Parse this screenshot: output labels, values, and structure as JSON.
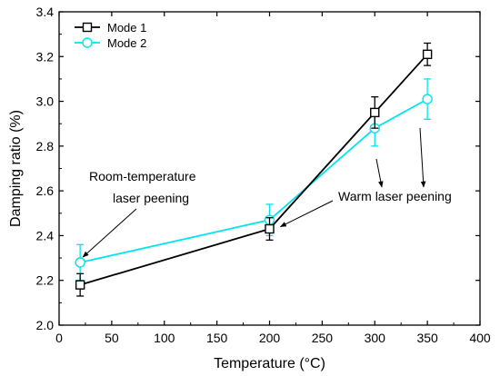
{
  "chart_data": {
    "type": "line",
    "title": "",
    "xlabel": "Temperature (°C)",
    "ylabel": "Damping ratio (%)",
    "xlim": [
      0,
      400
    ],
    "ylim": [
      2.0,
      3.4
    ],
    "xticks": [
      0,
      50,
      100,
      150,
      200,
      250,
      300,
      350,
      400
    ],
    "yticks": [
      2.0,
      2.2,
      2.4,
      2.6,
      2.8,
      3.0,
      3.2,
      3.4
    ],
    "x": [
      20,
      200,
      300,
      350
    ],
    "series": [
      {
        "name": "Mode 1",
        "color": "#000000",
        "marker": "square",
        "values": [
          2.18,
          2.43,
          2.95,
          3.21
        ],
        "errors": [
          0.05,
          0.05,
          0.07,
          0.05
        ]
      },
      {
        "name": "Mode 2",
        "color": "#00e5ee",
        "marker": "circle",
        "values": [
          2.28,
          2.47,
          2.88,
          3.01
        ],
        "errors": [
          0.08,
          0.07,
          0.08,
          0.09
        ]
      }
    ],
    "legend_position": "top-left",
    "grid": false,
    "annotations": [
      {
        "lines": [
          "Room-temperature",
          "laser peening"
        ],
        "points_to": [
          [
            20,
            2.28
          ]
        ]
      },
      {
        "lines": [
          "Warm laser peening"
        ],
        "points_to": [
          [
            200,
            2.44
          ],
          [
            300,
            2.8
          ],
          [
            350,
            2.92
          ]
        ]
      }
    ]
  }
}
